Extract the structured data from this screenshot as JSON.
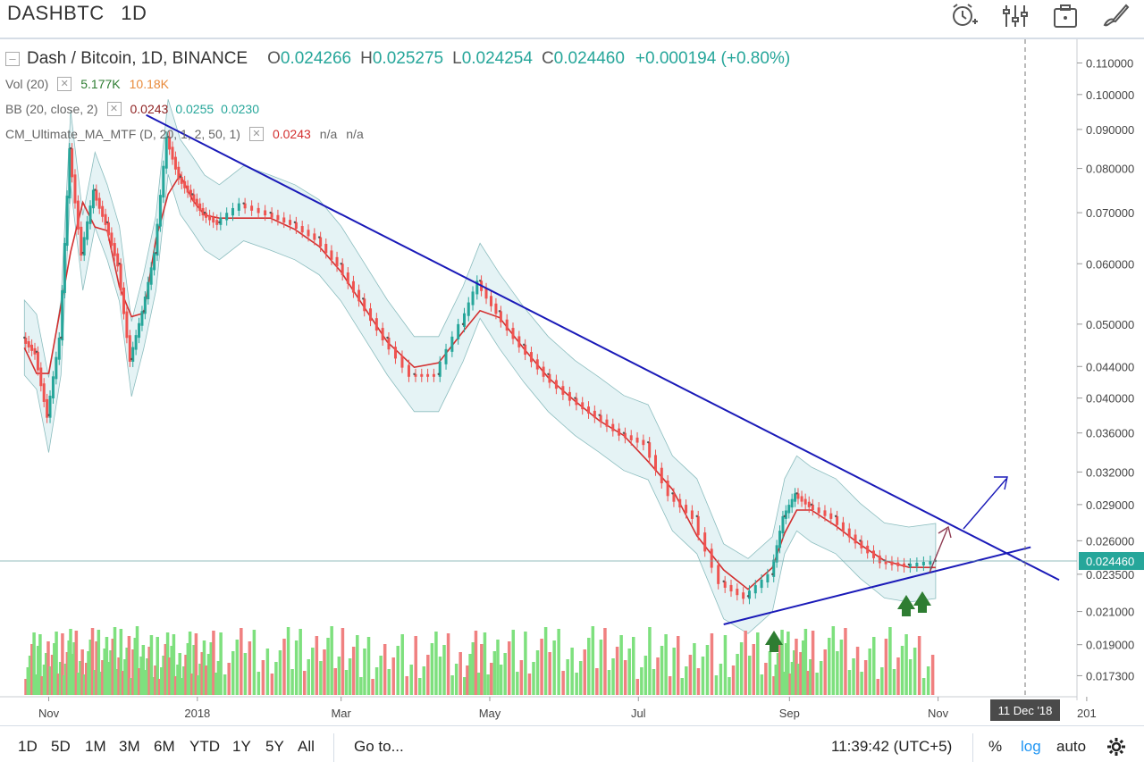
{
  "header": {
    "symbol": "DASHBTC",
    "interval": "1D",
    "icons": [
      "alarm-clock-icon",
      "indicators-icon",
      "snapshot-icon",
      "drawing-brush-icon"
    ]
  },
  "legend": {
    "title": "Dash / Bitcoin, 1D, BINANCE",
    "ohlc": {
      "o_label": "O",
      "o": "0.024266",
      "h_label": "H",
      "h": "0.025275",
      "l_label": "L",
      "l": "0.024254",
      "c_label": "C",
      "c": "0.024460",
      "change": "+0.000194 (+0.80%)"
    },
    "vol": {
      "label": "Vol (20)",
      "v1": "5.177K",
      "v2": "10.18K"
    },
    "bb": {
      "label": "BB (20, close, 2)",
      "basis": "0.0243",
      "upper": "0.0255",
      "lower": "0.0230"
    },
    "cm": {
      "label": "CM_Ultimate_MA_MTF (D, 20, 1, 2, 50, 1)",
      "v1": "0.0243",
      "v2": "n/a",
      "v3": "n/a"
    }
  },
  "bottom": {
    "ranges": [
      "1D",
      "5D",
      "1M",
      "3M",
      "6M",
      "YTD",
      "1Y",
      "5Y",
      "All"
    ],
    "goto": "Go to...",
    "clock": "11:39:42 (UTC+5)",
    "percent": "%",
    "log": "log",
    "auto": "auto"
  },
  "colors": {
    "up": "#26a69a",
    "down": "#ef5350",
    "trendline": "#1a1ab8",
    "bb_fill": "#e3f2f5",
    "ma_red": "#d32f2f",
    "ma_green": "#43a047",
    "vol_up": "#7ee07e",
    "vol_down": "#f08080"
  },
  "chart_data": {
    "type": "line",
    "scale": "log",
    "symbol": "DASHBTC",
    "exchange": "BINANCE",
    "y_ticks": [
      "0.110000",
      "0.100000",
      "0.090000",
      "0.080000",
      "0.070000",
      "0.060000",
      "0.050000",
      "0.044000",
      "0.040000",
      "0.036000",
      "0.032000",
      "0.029000",
      "0.026000",
      "0.023500",
      "0.021000",
      "0.019000",
      "0.017300"
    ],
    "x_ticks": [
      "Nov",
      "2018",
      "Mar",
      "May",
      "Jul",
      "Sep",
      "Nov",
      "201"
    ],
    "last_price_label": "0.024460",
    "crosshair_date_label": "11 Dec '18",
    "ylim": [
      0.0165,
      0.115
    ],
    "price_series": {
      "dates": [
        "2017-10-22",
        "2017-10-27",
        "2017-11-01",
        "2017-11-06",
        "2017-11-10",
        "2017-11-15",
        "2017-11-20",
        "2017-11-25",
        "2017-11-30",
        "2017-12-05",
        "2017-12-10",
        "2017-12-15",
        "2017-12-20",
        "2017-12-25",
        "2017-12-30",
        "2018-01-04",
        "2018-01-10",
        "2018-01-20",
        "2018-01-31",
        "2018-02-10",
        "2018-02-20",
        "2018-03-01",
        "2018-03-10",
        "2018-03-20",
        "2018-03-31",
        "2018-04-10",
        "2018-04-20",
        "2018-04-27",
        "2018-05-05",
        "2018-05-15",
        "2018-05-25",
        "2018-06-05",
        "2018-06-15",
        "2018-06-25",
        "2018-07-05",
        "2018-07-15",
        "2018-07-25",
        "2018-08-05",
        "2018-08-15",
        "2018-08-25",
        "2018-08-30",
        "2018-09-04",
        "2018-09-10",
        "2018-09-20",
        "2018-09-30",
        "2018-10-10",
        "2018-10-20",
        "2018-10-31"
      ],
      "close": [
        0.048,
        0.046,
        0.038,
        0.048,
        0.085,
        0.062,
        0.075,
        0.068,
        0.06,
        0.045,
        0.052,
        0.062,
        0.088,
        0.078,
        0.074,
        0.07,
        0.068,
        0.072,
        0.07,
        0.068,
        0.065,
        0.06,
        0.054,
        0.048,
        0.043,
        0.043,
        0.05,
        0.057,
        0.052,
        0.047,
        0.043,
        0.04,
        0.038,
        0.036,
        0.035,
        0.03,
        0.028,
        0.023,
        0.022,
        0.0235,
        0.028,
        0.03,
        0.029,
        0.028,
        0.026,
        0.0245,
        0.0242,
        0.02446
      ]
    },
    "annotations": [
      {
        "type": "trendline",
        "label": "descending resistance"
      },
      {
        "type": "trendline",
        "label": "ascending support"
      },
      {
        "type": "arrow",
        "label": "projected breakout"
      },
      {
        "type": "up-arrows",
        "label": "support bounces"
      }
    ]
  }
}
